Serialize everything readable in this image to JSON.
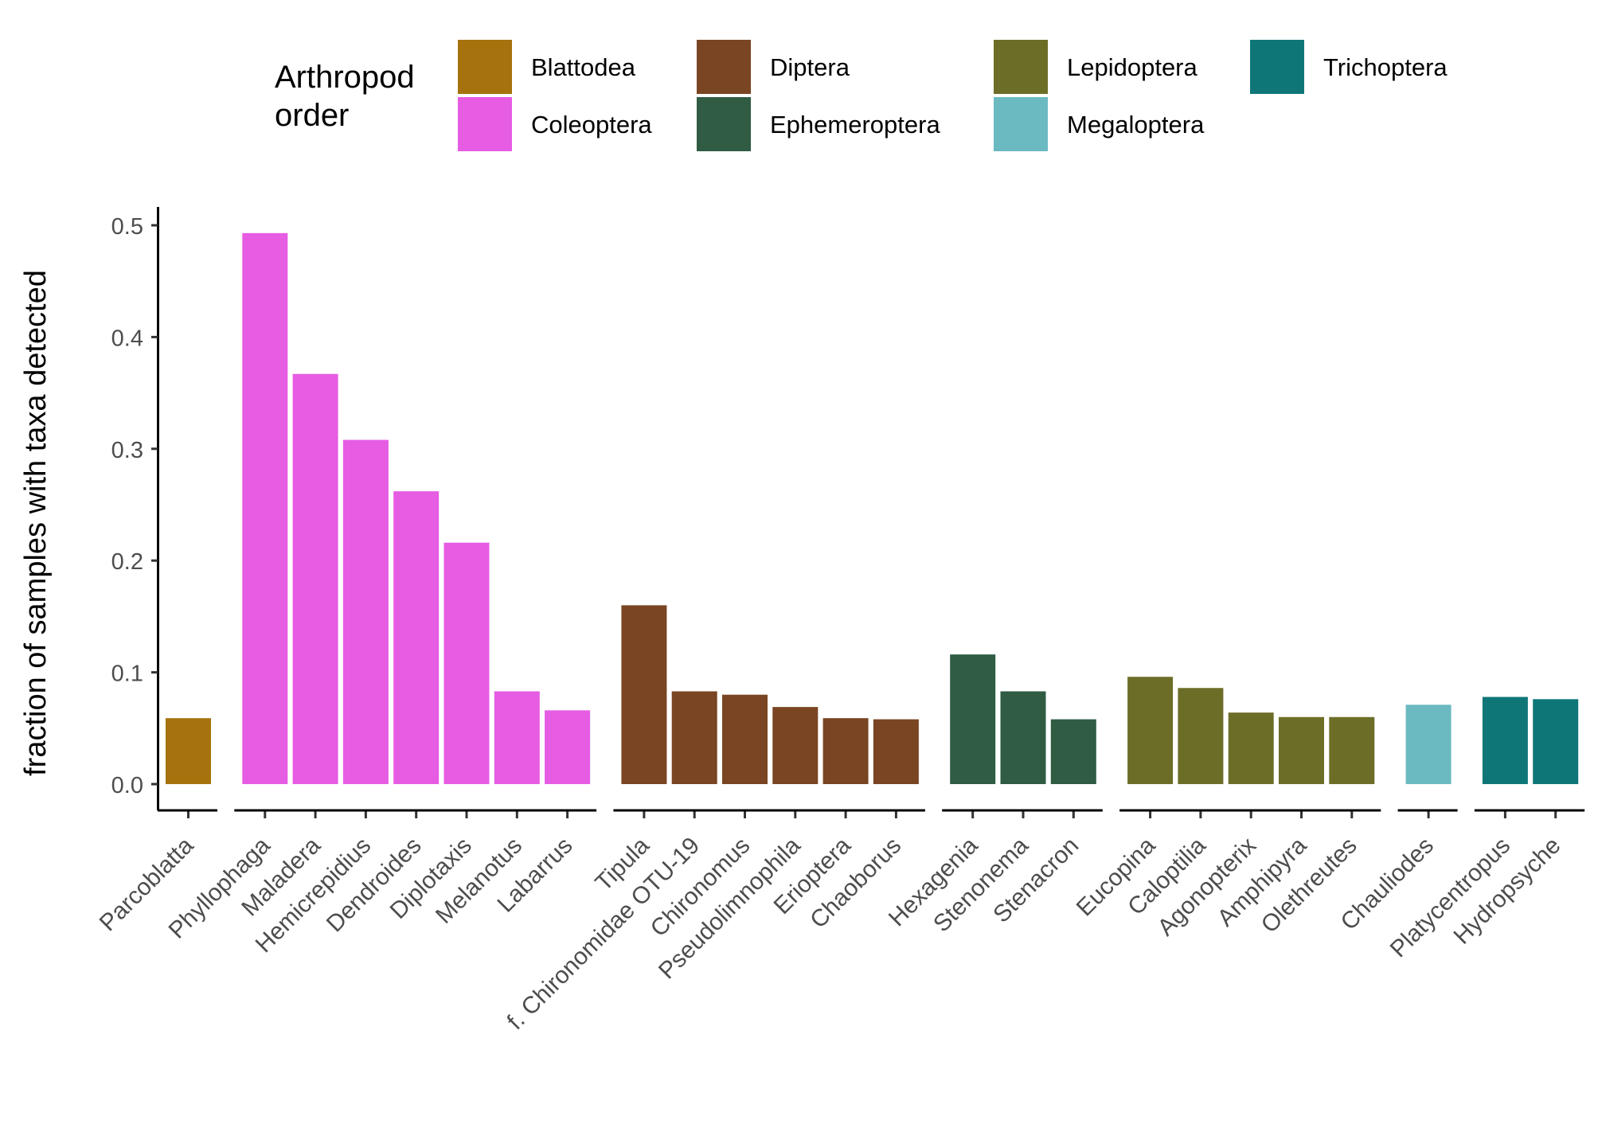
{
  "chart_data": {
    "type": "bar",
    "ylabel": "fraction of samples with taxa detected",
    "ylim": [
      0,
      0.5
    ],
    "y_ticks": [
      "0.0",
      "0.1",
      "0.2",
      "0.3",
      "0.4",
      "0.5"
    ],
    "y_tick_values": [
      0,
      0.1,
      0.2,
      0.3,
      0.4,
      0.5
    ],
    "legend": {
      "title_lines": [
        "Arthropod",
        "order"
      ],
      "placement": "top",
      "entries": [
        {
          "name": "Blattodea",
          "color": "#A6720E"
        },
        {
          "name": "Coleoptera",
          "color": "#E65CE3"
        },
        {
          "name": "Diptera",
          "color": "#7A4522"
        },
        {
          "name": "Ephemeroptera",
          "color": "#2F5C43"
        },
        {
          "name": "Lepidoptera",
          "color": "#6C6E28"
        },
        {
          "name": "Megaloptera",
          "color": "#6BB9C1"
        },
        {
          "name": "Trichoptera",
          "color": "#0F7678"
        }
      ]
    },
    "groups": [
      {
        "order": "Blattodea",
        "color": "#A6720E",
        "categories": [
          "Parcoblatta"
        ],
        "values": [
          0.059
        ]
      },
      {
        "order": "Coleoptera",
        "color": "#E65CE3",
        "categories": [
          "Phyllophaga",
          "Maladera",
          "Hemicrepidius",
          "Dendroides",
          "Diplotaxis",
          "Melanotus",
          "Labarrus"
        ],
        "values": [
          0.493,
          0.367,
          0.308,
          0.262,
          0.216,
          0.083,
          0.066
        ]
      },
      {
        "order": "Diptera",
        "color": "#7A4522",
        "categories": [
          "Tipula",
          "f. Chironomidae OTU-19",
          "Chironomus",
          "Pseudolimnophila",
          "Erioptera",
          "Chaoborus"
        ],
        "values": [
          0.16,
          0.083,
          0.08,
          0.069,
          0.059,
          0.058
        ]
      },
      {
        "order": "Ephemeroptera",
        "color": "#2F5C43",
        "categories": [
          "Hexagenia",
          "Stenonema",
          "Stenacron"
        ],
        "values": [
          0.116,
          0.083,
          0.058
        ]
      },
      {
        "order": "Lepidoptera",
        "color": "#6C6E28",
        "categories": [
          "Eucopina",
          "Caloptilia",
          "Agonopterix",
          "Amphipyra",
          "Olethreutes"
        ],
        "values": [
          0.096,
          0.086,
          0.064,
          0.06,
          0.06
        ]
      },
      {
        "order": "Megaloptera",
        "color": "#6BB9C1",
        "categories": [
          "Chauliodes"
        ],
        "values": [
          0.071
        ]
      },
      {
        "order": "Trichoptera",
        "color": "#0F7678",
        "categories": [
          "Platycentropus",
          "Hydropsyche"
        ],
        "values": [
          0.078,
          0.076
        ]
      }
    ],
    "grid": false
  }
}
